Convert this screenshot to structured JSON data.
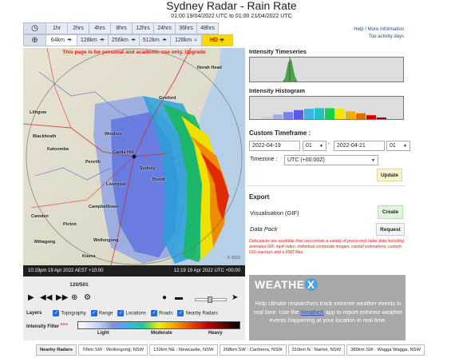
{
  "header": {
    "title": "Sydney Radar - Rain Rate",
    "subtitle": "01:00 19/04/2022 UTC to 01:00 21/04/2022 UTC"
  },
  "time_buttons": [
    "1hr",
    "2hrs",
    "4hrs",
    "8hrs",
    "12hrs",
    "24hrs",
    "36hrs",
    "48hrs"
  ],
  "range_buttons": [
    {
      "label": "64km",
      "active": true
    },
    {
      "label": "128km",
      "active": false
    },
    {
      "label": "256km",
      "active": false
    },
    {
      "label": "512km",
      "active": false
    },
    {
      "label": "128km",
      "active": false
    }
  ],
  "hd_label": "HD",
  "top_links": {
    "help": "Help / More Information",
    "top_activity": "Top activity days"
  },
  "map": {
    "notice": "This page is for personal and academic use only. Upgrade",
    "watermark": "© 2022",
    "places": [
      "Lithgow",
      "Windsor",
      "Gosford",
      "Norah Head",
      "Blackheath",
      "Katoomba",
      "Penrith",
      "Castle Hill",
      "Sydney",
      "Bondi",
      "Liverpool",
      "Campbelltown",
      "Picton",
      "Camden",
      "Mittagong",
      "Wollongong",
      "Kiama"
    ]
  },
  "timebar": {
    "left": "10:19pm 19 Apr 2022 AEST +10:00",
    "right": "12:19 19 Apr 2022 UTC +00:00"
  },
  "playback": {
    "counter": "120/501",
    "slider_position": 0.45
  },
  "layers": {
    "label": "Layers",
    "items": [
      "Topography",
      "Range",
      "Locations",
      "Roads",
      "Nearby Radars"
    ]
  },
  "intensity_filter": {
    "label": "Intensity Filter",
    "beta": "Beta",
    "levels": [
      "Light",
      "Moderate",
      "Heavy"
    ]
  },
  "sidebar": {
    "timeseries_title": "Intensity Timeseries",
    "histogram_title": "Intensity Histogram",
    "custom_timeframe_title": "Custom Timeframe :",
    "start_date": "2022-04-19",
    "start_hour": "01",
    "date_separator": "-",
    "end_date": "2022-04-21",
    "end_hour": "01",
    "timezone_label": "Timezone :",
    "timezone_value": "UTC (+00:00Z)",
    "update_label": "Update",
    "export_title": "Export",
    "visualisation_label": "Visualisation (GIF)",
    "create_label": "Create",
    "datapack_label": "Data Pack",
    "request_label": "Request",
    "datapack_note": "Data packs are available that can contain a variety of processed radar data including animated GIF, mp4 video, individual composite images, rainfall estimations, custom GIS overlays and a KMZ files."
  },
  "histogram": {
    "colors": [
      "#c6cdf0",
      "#a4aaf0",
      "#7b7ff0",
      "#5a5af0",
      "#3bb4e8",
      "#20c4c0",
      "#12d050",
      "#f0e800",
      "#f0b000",
      "#e86a00",
      "#d00000",
      "#900010"
    ],
    "values": [
      0.15,
      0.35,
      0.55,
      0.7,
      0.8,
      0.85,
      0.85,
      0.8,
      0.6,
      0.45,
      0.3,
      0.12
    ]
  },
  "promo": {
    "logo_text": "WEATHE",
    "logo_x": "X",
    "line1": "Help climate researchers track extreme weather events in real time. Use the",
    "link": "WeatheX",
    "line2": "app to report extreme weather events happening at your location in real time."
  },
  "nearby": {
    "label": "Nearby Radars",
    "items": [
      "70km SW : Wollongong, NSW",
      "132km NE : Newcastle, NSW",
      "268km SW : Canberra, NSW",
      "310km N : Namoi, NSW",
      "380km SW : Wagga Wagga, NSW"
    ]
  }
}
